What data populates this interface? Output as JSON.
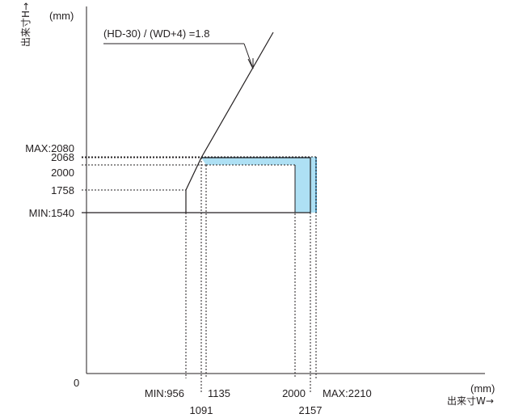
{
  "chart_data": {
    "type": "line",
    "formula_label": "(HD-30) / (WD+4) =1.8",
    "x_unit": "(mm)",
    "y_unit": "(mm)",
    "x_axis_label": "出来寸W→",
    "y_axis_label": "出来寸H→",
    "origin_label": "0",
    "xlim": [
      0,
      2600
    ],
    "ylim": [
      0,
      2600
    ],
    "ratio_line": {
      "slope": 1.8,
      "intercept_h": 37.2,
      "x_range": [
        1091,
        1500
      ]
    },
    "boundary_path": [
      {
        "w": 956,
        "h": 1540
      },
      {
        "w": 956,
        "h": 1758
      },
      {
        "w": 1091,
        "h": 2068
      },
      {
        "w": 2157,
        "h": 2068
      },
      {
        "w": 2157,
        "h": 1540
      }
    ],
    "inner_path": [
      {
        "w": 1135,
        "h": 2000
      },
      {
        "w": 2000,
        "h": 2000
      },
      {
        "w": 2000,
        "h": 1540
      }
    ],
    "shaded_region": [
      {
        "w": 1091,
        "h": 2080
      },
      {
        "w": 2210,
        "h": 2080
      },
      {
        "w": 2210,
        "h": 1540
      },
      {
        "w": 2000,
        "h": 1540
      },
      {
        "w": 2000,
        "h": 2000
      },
      {
        "w": 1135,
        "h": 2000
      },
      {
        "w": 1091,
        "h": 2068
      }
    ],
    "x_ticks": [
      {
        "value": 956,
        "label": "MIN:956",
        "row": 1
      },
      {
        "value": 1091,
        "label": "1091",
        "row": 2
      },
      {
        "value": 1135,
        "label": "1135",
        "row": 1
      },
      {
        "value": 2000,
        "label": "2000",
        "row": 1
      },
      {
        "value": 2157,
        "label": "2157",
        "row": 2
      },
      {
        "value": 2210,
        "label": "MAX:2210",
        "row": 1
      }
    ],
    "y_ticks": [
      {
        "value": 2080,
        "label": "MAX:2080"
      },
      {
        "value": 2068,
        "label": "2068"
      },
      {
        "value": 2000,
        "label": "2000"
      },
      {
        "value": 1758,
        "label": "1758"
      },
      {
        "value": 1540,
        "label": "MIN:1540"
      }
    ],
    "colors": {
      "line": "#231f20",
      "fill": "#aee0f4",
      "fill_edge": "#5a9fc4"
    }
  }
}
